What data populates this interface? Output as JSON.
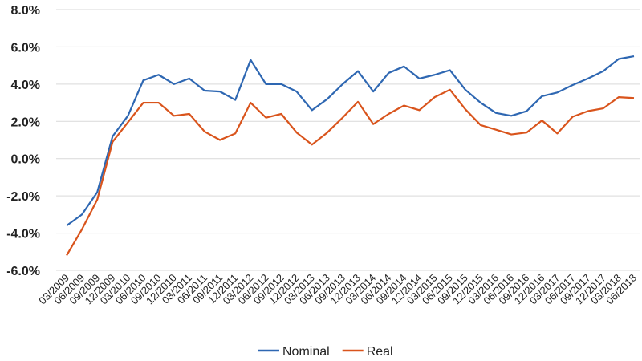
{
  "chart_data": {
    "type": "line",
    "categories": [
      "03/2009",
      "06/2009",
      "09/2009",
      "12/2009",
      "03/2010",
      "06/2010",
      "09/2010",
      "12/2010",
      "03/2011",
      "06/2011",
      "09/2011",
      "12/2011",
      "03/2012",
      "06/2012",
      "09/2012",
      "12/2012",
      "03/2013",
      "06/2013",
      "09/2013",
      "12/2013",
      "03/2014",
      "06/2014",
      "09/2014",
      "12/2014",
      "03/2015",
      "06/2015",
      "09/2015",
      "12/2015",
      "03/2016",
      "06/2016",
      "09/2016",
      "12/2016",
      "03/2017",
      "06/2017",
      "09/2017",
      "12/2017",
      "03/2018",
      "06/2018"
    ],
    "series": [
      {
        "name": "Nominal",
        "color": "#2e67b2",
        "values": [
          -3.6,
          -3.0,
          -1.8,
          1.2,
          2.3,
          4.2,
          4.5,
          4.0,
          4.3,
          3.65,
          3.6,
          3.15,
          5.3,
          4.0,
          4.0,
          3.6,
          2.6,
          3.2,
          4.0,
          4.7,
          3.6,
          4.6,
          4.95,
          4.3,
          4.5,
          4.75,
          3.7,
          3.0,
          2.45,
          2.3,
          2.55,
          3.35,
          3.55,
          3.95,
          4.3,
          4.7,
          5.35,
          5.5
        ]
      },
      {
        "name": "Real",
        "color": "#d9541c",
        "values": [
          -5.2,
          -3.8,
          -2.2,
          0.9,
          1.95,
          3.0,
          3.0,
          2.3,
          2.4,
          1.45,
          1.0,
          1.35,
          3.0,
          2.2,
          2.4,
          1.4,
          0.75,
          1.4,
          2.2,
          3.05,
          1.85,
          2.4,
          2.85,
          2.6,
          3.3,
          3.7,
          2.65,
          1.8,
          1.55,
          1.3,
          1.4,
          2.05,
          1.35,
          2.25,
          2.55,
          2.7,
          3.3,
          3.25
        ]
      }
    ],
    "ylim": [
      -6,
      8
    ],
    "yticks": [
      {
        "value": -6,
        "label": "-6.0%"
      },
      {
        "value": -4,
        "label": "-4.0%"
      },
      {
        "value": -2,
        "label": "-2.0%"
      },
      {
        "value": 0,
        "label": "0.0%"
      },
      {
        "value": 2,
        "label": "2.0%"
      },
      {
        "value": 4,
        "label": "4.0%"
      },
      {
        "value": 6,
        "label": "6.0%"
      },
      {
        "value": 8,
        "label": "8.0%"
      }
    ],
    "grid": true,
    "legend": "bottom"
  }
}
